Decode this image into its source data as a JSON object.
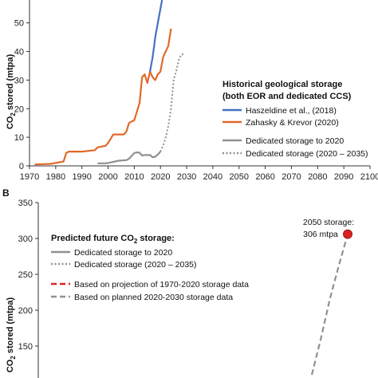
{
  "chart_data": [
    {
      "panel": "A",
      "type": "line",
      "ylabel_main": "CO",
      "ylabel_sub": "2",
      "ylabel_rest": " stored (mtpa)",
      "xlim": [
        1970,
        2100
      ],
      "ylim": [
        0,
        58
      ],
      "xticks": [
        "1970",
        "1980",
        "1990",
        "2000",
        "2010",
        "2020",
        "2030",
        "2040",
        "2050",
        "2060",
        "2070",
        "2080",
        "2090",
        "2100"
      ],
      "yticks": [
        "0",
        "10",
        "20",
        "30",
        "40",
        "50"
      ],
      "legend": {
        "title_line1": "Historical geological storage",
        "title_line2": "(both EOR and dedicated CCS)",
        "placement": "right"
      },
      "series": [
        {
          "name": "Haszeldine et al., (2018)",
          "color": "#4472c4",
          "style": "solid",
          "x": [
            2016,
            2017,
            2018,
            2019,
            2020,
            2020.6
          ],
          "y": [
            33,
            38,
            45,
            50,
            55,
            58
          ]
        },
        {
          "name": "Zahasky & Krevor (2020)",
          "color": "#e0692a",
          "style": "solid",
          "x": [
            1972,
            1975,
            1978,
            1981,
            1983,
            1984,
            1985,
            1986,
            1987,
            1990,
            1995,
            1996,
            1999,
            2000,
            2002,
            2003,
            2004,
            2006,
            2007,
            2008,
            2010,
            2011,
            2012,
            2013,
            2014,
            2015,
            2016,
            2017,
            2018,
            2019,
            2020,
            2021,
            2022,
            2023,
            2024
          ],
          "y": [
            0.5,
            0.6,
            0.7,
            1.2,
            1.5,
            4.5,
            5,
            5,
            5,
            5,
            5.5,
            6.5,
            7,
            8,
            11,
            11,
            11,
            11,
            12,
            15,
            16,
            19,
            22,
            31,
            32,
            29,
            33,
            31,
            30,
            32,
            33,
            38,
            40,
            42,
            48
          ]
        },
        {
          "name": "Dedicated storage to 2020",
          "color": "#909090",
          "style": "solid",
          "x": [
            1996,
            1999,
            2000,
            2004,
            2007,
            2008,
            2010,
            2011,
            2012,
            2013,
            2014,
            2016,
            2017,
            2018,
            2019,
            2020
          ],
          "y": [
            0.9,
            0.9,
            1,
            1.8,
            2,
            2.5,
            4.5,
            4.7,
            4.6,
            3.6,
            3.8,
            3.8,
            3,
            3.2,
            4,
            5
          ]
        },
        {
          "name": "Dedicated storage (2020 – 2035)",
          "color": "#909090",
          "style": "dotted",
          "x": [
            2020,
            2021,
            2022,
            2023,
            2024,
            2025,
            2026,
            2027,
            2028,
            2029
          ],
          "y": [
            5,
            7,
            10,
            14,
            20,
            30,
            33,
            37,
            39,
            39
          ]
        }
      ]
    },
    {
      "panel": "B",
      "type": "line",
      "ylabel_main": "CO",
      "ylabel_sub": "2",
      "ylabel_rest": " stored (mtpa)",
      "ylim": [
        100,
        350
      ],
      "yticks": [
        "150",
        "200",
        "250",
        "300",
        "350"
      ],
      "legend": {
        "title_main": "Predicted future CO",
        "title_sub": "2",
        "title_rest": " storage:",
        "placement": "left"
      },
      "series": [
        {
          "name": "Dedicated storage to 2020",
          "color": "#909090",
          "style": "solid"
        },
        {
          "name": "Dedicated storage (2020 – 2035)",
          "color": "#909090",
          "style": "dotted"
        },
        {
          "name": "Based on projection of 1970-2020 storage data",
          "color": "#e02020",
          "style": "dashed"
        },
        {
          "name": "Based on planned 2020-2030 storage data",
          "color": "#909090",
          "style": "dashed",
          "x": [
            2081,
            2084,
            2087,
            2090,
            2093
          ],
          "y": [
            110,
            160,
            215,
            262,
            306
          ]
        }
      ],
      "annotation": {
        "line1": "2050 storage:",
        "line2": "306 mtpa",
        "x": 2093,
        "y": 306,
        "color": "#e02020"
      }
    }
  ]
}
